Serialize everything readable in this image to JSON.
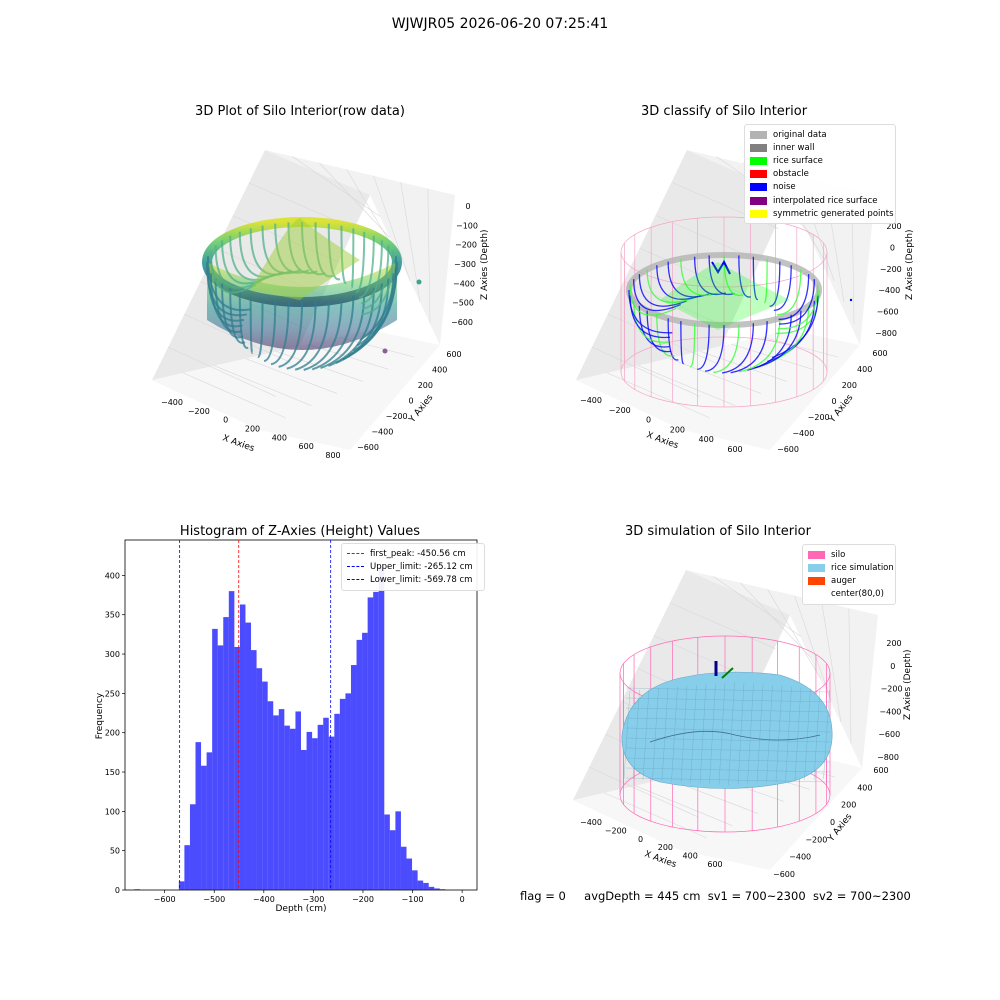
{
  "suptitle": "WJWJR05 2026-06-20 07:25:41",
  "footer": {
    "flag": "flag = 0",
    "avg_depth": "avgDepth = 445 cm",
    "sv1": "sv1 = 700~2300",
    "sv2": "sv2 = 700~2300"
  },
  "panels": {
    "raw": {
      "title": "3D Plot of Silo Interior(row data)",
      "xlabel": "X Axies",
      "ylabel": "Y Axies",
      "zlabel": "Z Axies (Depth)",
      "xticks": [
        "−400",
        "−200",
        "0",
        "200",
        "400",
        "600",
        "800"
      ],
      "yticks": [
        "−600",
        "−400",
        "−200",
        "0",
        "200",
        "400",
        "600"
      ],
      "zticks": [
        "0",
        "−100",
        "−200",
        "−300",
        "−400",
        "−500",
        "−600"
      ]
    },
    "classify": {
      "title": "3D classify of Silo Interior",
      "xlabel": "X Axies",
      "ylabel": "Y Axies",
      "zlabel": "Z Axies (Depth)",
      "xticks": [
        "−400",
        "−200",
        "0",
        "200",
        "400",
        "600"
      ],
      "yticks": [
        "−600",
        "−400",
        "−200",
        "0",
        "200",
        "400",
        "600"
      ],
      "zticks": [
        "200",
        "0",
        "−200",
        "−400",
        "−600",
        "−800"
      ],
      "legend": [
        {
          "label": "original data",
          "color": "#b3b3b3"
        },
        {
          "label": "inner wall",
          "color": "#808080"
        },
        {
          "label": "rice surface",
          "color": "#00ff00"
        },
        {
          "label": "obstacle",
          "color": "#ff0000"
        },
        {
          "label": "noise",
          "color": "#0000ff"
        },
        {
          "label": "interpolated rice surface",
          "color": "#800080"
        },
        {
          "label": "symmetric generated points",
          "color": "#ffff00"
        }
      ]
    },
    "simulation": {
      "title": "3D simulation of Silo Interior",
      "xlabel": "X Axies",
      "ylabel": "Y Axies",
      "zlabel": "Z Axies (Depth)",
      "xticks": [
        "−400",
        "−200",
        "0",
        "200",
        "400",
        "600"
      ],
      "yticks": [
        "−600",
        "−400",
        "−200",
        "0",
        "200",
        "400",
        "600"
      ],
      "zticks": [
        "200",
        "0",
        "−200",
        "−400",
        "−600",
        "−800"
      ],
      "legend": [
        {
          "label": "silo",
          "color": "#ff69b4"
        },
        {
          "label": "rice simulation",
          "color": "#87ceeb"
        },
        {
          "label": "auger",
          "color": "#ff4500"
        },
        {
          "label": "center(80,0)",
          "color": ""
        }
      ]
    }
  },
  "chart_data": {
    "type": "bar",
    "title": "Histogram of Z-Axies (Height) Values",
    "xlabel": "Depth (cm)",
    "ylabel": "Frequency",
    "xlim": [
      -680,
      30
    ],
    "ylim": [
      0,
      445
    ],
    "xticks": [
      -600,
      -500,
      -400,
      -300,
      -200,
      -100,
      0
    ],
    "yticks": [
      0,
      50,
      100,
      150,
      200,
      250,
      300,
      350,
      400
    ],
    "color": "#0000ff",
    "bin_width": 11.2,
    "bins_start": [
      -661,
      -571.4,
      -560.2,
      -549,
      -537.8,
      -526.6,
      -515.4,
      -504.2,
      -493,
      -481.8,
      -470.6,
      -459.4,
      -448.2,
      -437,
      -425.8,
      -414.6,
      -403.4,
      -392.2,
      -381,
      -369.8,
      -358.6,
      -347.4,
      -336.2,
      -325,
      -313.8,
      -302.6,
      -291.4,
      -280.2,
      -269,
      -257.8,
      -246.6,
      -235.4,
      -224.2,
      -213,
      -201.8,
      -190.6,
      -179.4,
      -168.2,
      -157,
      -145.8,
      -134.6,
      -123.4,
      -112.2,
      -101,
      -89.8,
      -78.6,
      -67.4,
      -56.2,
      -45,
      -33.8,
      -22.6,
      -11.4
    ],
    "frequency": [
      1,
      11,
      57,
      109,
      188,
      158,
      175,
      332,
      311,
      347,
      380,
      309,
      363,
      340,
      305,
      282,
      265,
      240,
      222,
      230,
      209,
      205,
      227,
      178,
      201,
      193,
      210,
      219,
      195,
      224,
      243,
      250,
      286,
      318,
      327,
      372,
      379,
      411,
      96,
      76,
      100,
      55,
      40,
      25,
      12,
      9,
      4,
      2,
      1,
      0,
      0,
      0
    ],
    "vlines": [
      {
        "label": "first_peak: -450.56 cm",
        "x": -450.56,
        "color": "#ff0000"
      },
      {
        "label": "Upper_limit: -265.12 cm",
        "x": -265.12,
        "color": "#0000ff"
      },
      {
        "label": "Lower_limit: -569.78 cm",
        "x": -569.78,
        "color": "#0000ff"
      }
    ]
  }
}
